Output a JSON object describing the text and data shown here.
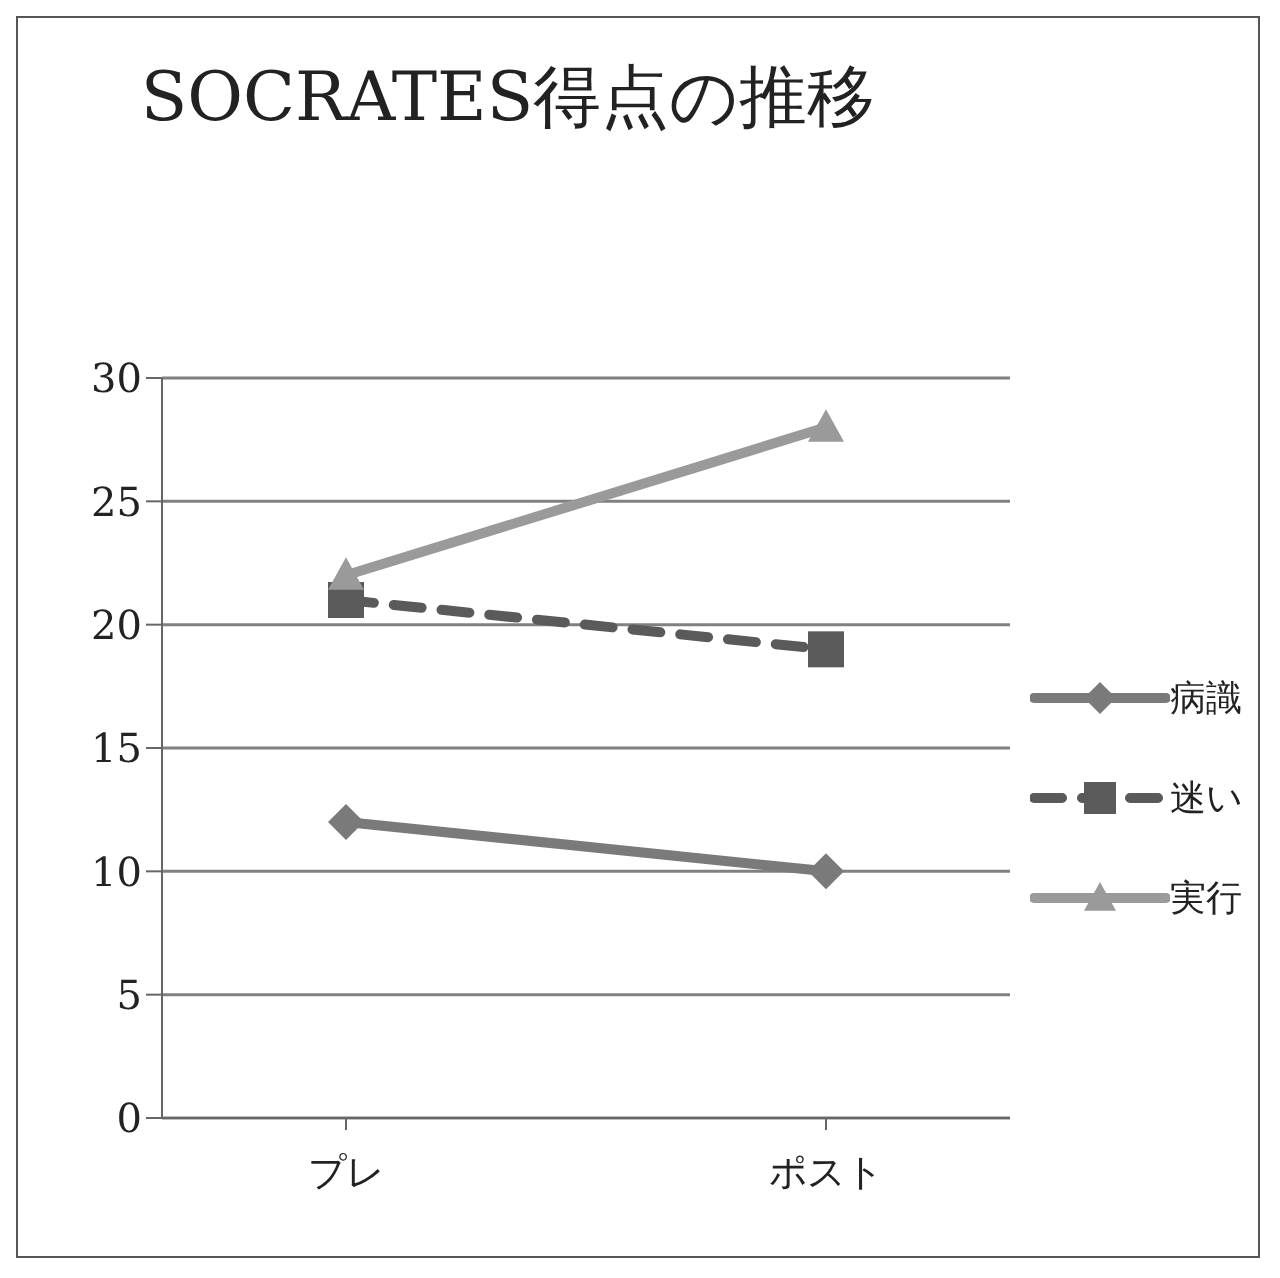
{
  "chart_data": {
    "type": "line",
    "title": "SOCRATES得点の推移",
    "categories": [
      "プレ",
      "ポスト"
    ],
    "series": [
      {
        "name": "病識",
        "color": "#7a7a7a",
        "values": [
          12,
          10
        ],
        "marker": "diamond",
        "line_style": "solid"
      },
      {
        "name": "迷い",
        "color": "#5a5a5a",
        "values": [
          21,
          19
        ],
        "marker": "square",
        "line_style": "dashed"
      },
      {
        "name": "実行",
        "color": "#9a9a9a",
        "values": [
          22,
          28
        ],
        "marker": "triangle",
        "line_style": "solid"
      }
    ],
    "ylim": [
      0,
      30
    ],
    "yticks": [
      0,
      5,
      10,
      15,
      20,
      25,
      30
    ],
    "grid": "y",
    "legend": "right"
  }
}
